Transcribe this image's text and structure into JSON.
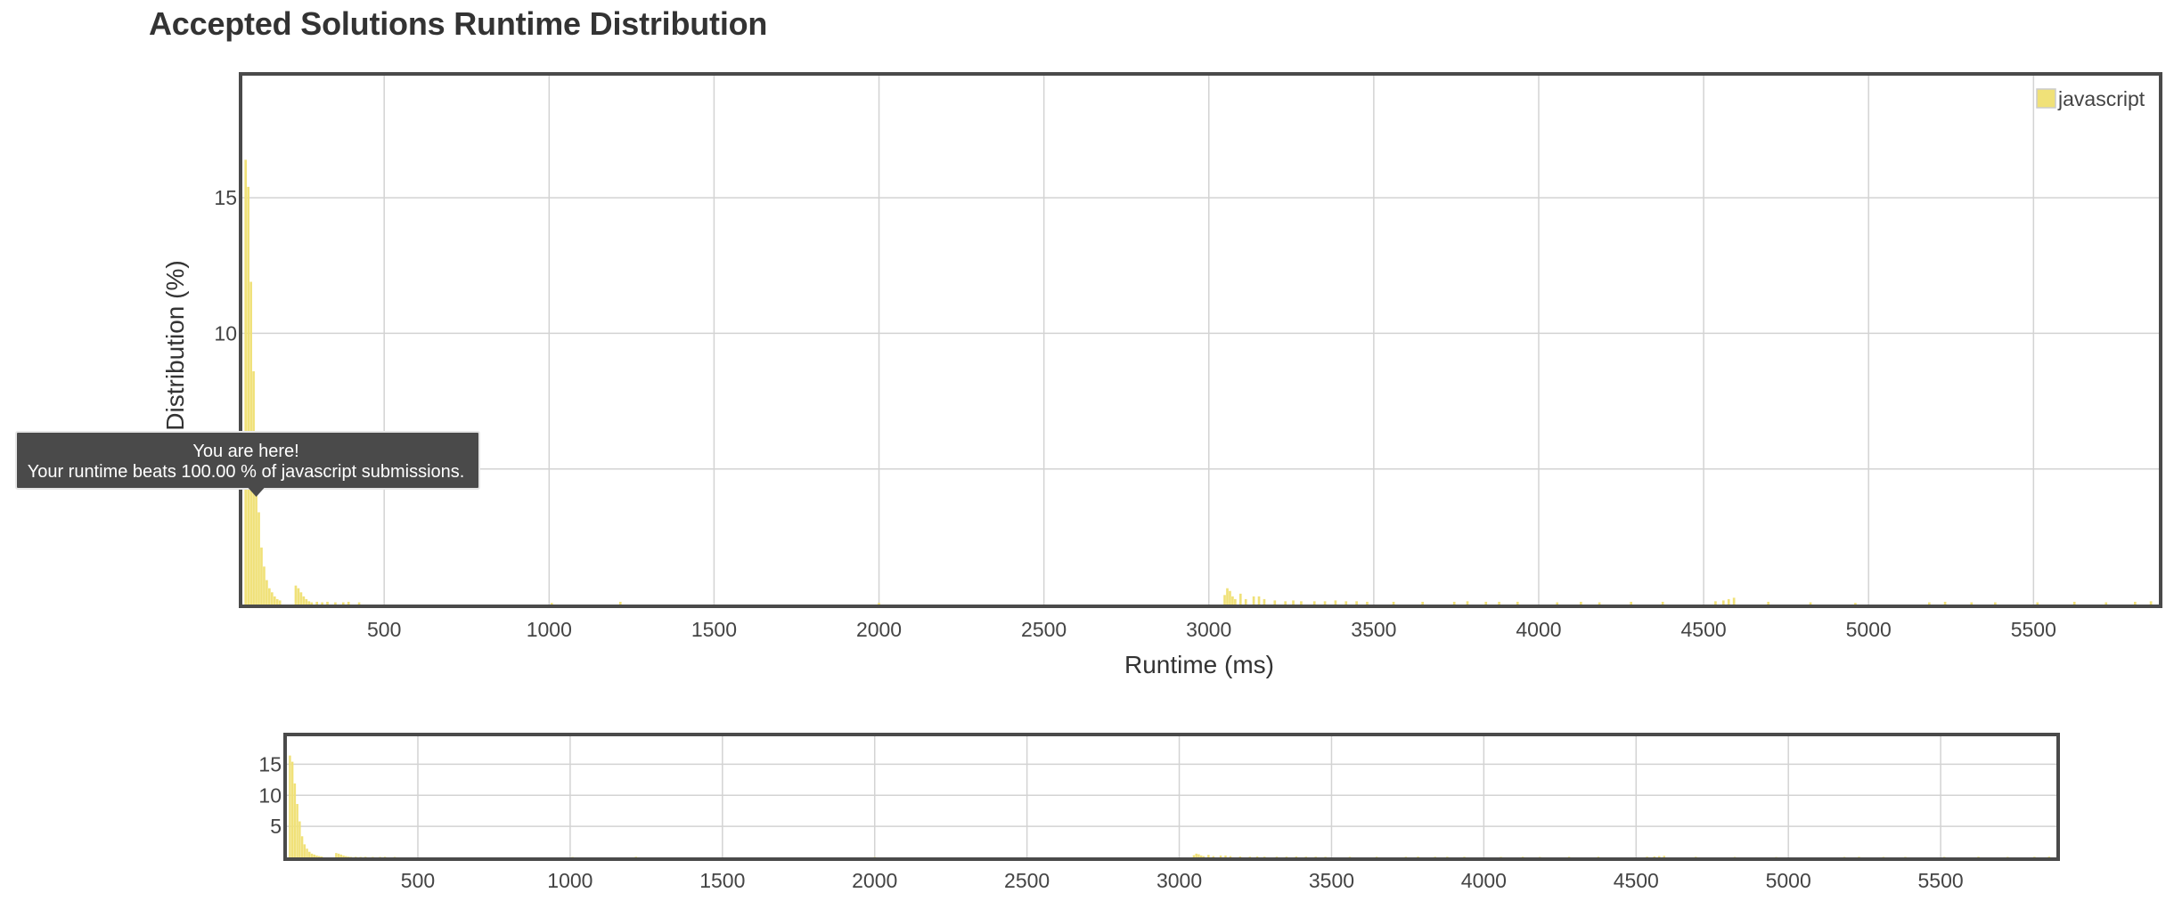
{
  "title": "Accepted Solutions Runtime Distribution",
  "chart_data": {
    "type": "bar",
    "xlabel": "Runtime (ms)",
    "ylabel": "Distribution (%)",
    "xlim": [
      70,
      5880
    ],
    "ylim": [
      0,
      19.5
    ],
    "x_ticks": [
      500,
      1000,
      1500,
      2000,
      2500,
      3000,
      3500,
      4000,
      4500,
      5000,
      5500
    ],
    "y_ticks": [
      5,
      10,
      15
    ],
    "y_tick_labels": [
      "",
      "10",
      "15"
    ],
    "grid": true,
    "legend": {
      "position": "top-right",
      "color": "#f0e178"
    },
    "series": [
      {
        "name": "javascript",
        "color": "#f0e178",
        "bin_width": 8,
        "x": [
          80,
          88,
          96,
          104,
          112,
          120,
          128,
          136,
          144,
          152,
          160,
          168,
          176,
          184,
          232,
          240,
          248,
          256,
          264,
          272,
          280,
          296,
          312,
          328,
          352,
          376,
          392,
          424,
          1008,
          1216,
          2000,
          3048,
          3056,
          3064,
          3072,
          3080,
          3096,
          3112,
          3136,
          3152,
          3168,
          3200,
          3232,
          3256,
          3280,
          3320,
          3352,
          3384,
          3416,
          3448,
          3480,
          3560,
          3648,
          3744,
          3784,
          3840,
          3880,
          3936,
          4056,
          4128,
          4184,
          4280,
          4376,
          4536,
          4560,
          4576,
          4592,
          4696,
          4824,
          4960,
          5184,
          5232,
          5312,
          5384,
          5512,
          5624,
          5720,
          5808,
          5856
        ],
        "values": [
          16.4,
          15.4,
          11.9,
          8.6,
          5.8,
          3.4,
          2.1,
          1.4,
          0.9,
          0.6,
          0.45,
          0.3,
          0.2,
          0.15,
          0.7,
          0.6,
          0.45,
          0.3,
          0.2,
          0.12,
          0.08,
          0.1,
          0.08,
          0.1,
          0.08,
          0.08,
          0.1,
          0.08,
          0.06,
          0.1,
          0.06,
          0.35,
          0.6,
          0.5,
          0.3,
          0.2,
          0.4,
          0.2,
          0.3,
          0.3,
          0.2,
          0.15,
          0.12,
          0.15,
          0.12,
          0.12,
          0.12,
          0.15,
          0.12,
          0.12,
          0.1,
          0.1,
          0.1,
          0.1,
          0.12,
          0.1,
          0.1,
          0.1,
          0.08,
          0.1,
          0.08,
          0.1,
          0.1,
          0.12,
          0.15,
          0.2,
          0.25,
          0.1,
          0.08,
          0.06,
          0.08,
          0.1,
          0.08,
          0.08,
          0.08,
          0.1,
          0.08,
          0.1,
          0.12
        ]
      }
    ],
    "navigator": {
      "ylim": [
        0,
        19.5
      ],
      "x_ticks": [
        500,
        1000,
        1500,
        2000,
        2500,
        3000,
        3500,
        4000,
        4500,
        5000,
        5500
      ],
      "y_ticks": [
        5,
        10,
        15
      ]
    },
    "tooltip": {
      "line1": "You are here!",
      "line2": "Your runtime beats 100.00 % of javascript submissions.",
      "x": 112
    }
  }
}
